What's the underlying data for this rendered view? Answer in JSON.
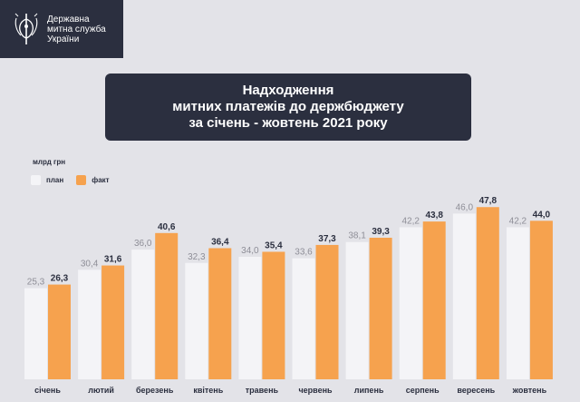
{
  "brand": {
    "line1": "Державна",
    "line2": "митна служба",
    "line3": "України",
    "icon": "trident-shield-icon"
  },
  "title": {
    "line1": "Надходження",
    "line2": "митних платежів до держбюджету",
    "line3": "за січень - жовтень 2021 року"
  },
  "colors": {
    "background": "#e3e3e8",
    "panel": "#2b2f3f",
    "plan": "#f4f4f7",
    "fact": "#f6a24e"
  },
  "chart_data": {
    "type": "bar",
    "ylabel": "млрд грн",
    "categories": [
      "січень",
      "лютий",
      "березень",
      "квітень",
      "травень",
      "червень",
      "липень",
      "серпень",
      "вересень",
      "жовтень"
    ],
    "series": [
      {
        "name": "план",
        "values": [
          25.3,
          30.4,
          36.0,
          32.3,
          34.0,
          33.6,
          38.1,
          42.2,
          46.0,
          42.2
        ],
        "labels": [
          "25,3",
          "30,4",
          "36,0",
          "32,3",
          "34,0",
          "33,6",
          "38,1",
          "42,2",
          "46,0",
          "42,2"
        ]
      },
      {
        "name": "факт",
        "values": [
          26.3,
          31.6,
          40.6,
          36.4,
          35.4,
          37.3,
          39.3,
          43.8,
          47.8,
          44.0
        ],
        "labels": [
          "26,3",
          "31,6",
          "40,6",
          "36,4",
          "35,4",
          "37,3",
          "39,3",
          "43,8",
          "47,8",
          "44,0"
        ]
      }
    ],
    "legend": "top-left",
    "grid": false
  }
}
